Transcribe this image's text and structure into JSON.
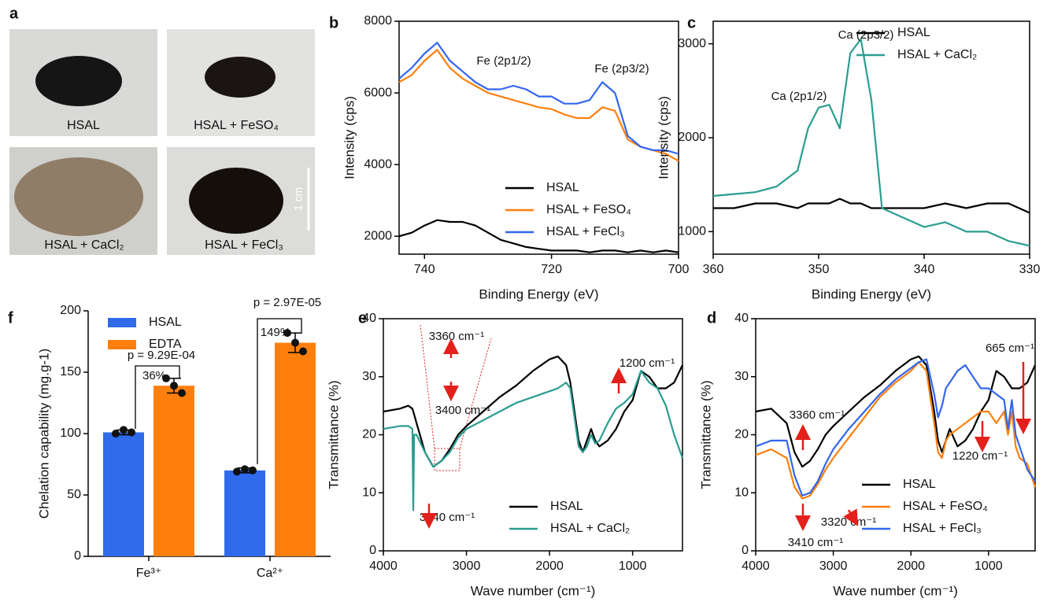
{
  "photos": {
    "panel": "a",
    "labels": [
      "HSAL",
      "HSAL + FeSO₄",
      "HSAL + CaCl₂",
      "HSAL + FeCl₃"
    ],
    "scale_label": "1 cm"
  },
  "chart_data": [
    {
      "type": "line",
      "panel": "b",
      "x_label": "Binding Energy (eV)",
      "y_label": "Intensity (cps)",
      "xlim": [
        744,
        700
      ],
      "ylim": [
        1500,
        8000
      ],
      "xticks": [
        740,
        720,
        700
      ],
      "yticks": [
        2000,
        4000,
        6000,
        8000
      ],
      "legend": "lower right",
      "x": [
        744,
        742,
        740,
        738,
        736,
        734,
        732,
        730,
        728,
        726,
        724,
        722,
        720,
        718,
        716,
        714,
        712,
        710,
        708,
        706,
        704,
        702,
        700
      ],
      "series": [
        {
          "name": "HSAL",
          "color": "#000000",
          "values": [
            2000,
            2100,
            2300,
            2450,
            2400,
            2400,
            2300,
            2100,
            1900,
            1800,
            1700,
            1650,
            1600,
            1600,
            1600,
            1550,
            1600,
            1600,
            1550,
            1600,
            1550,
            1600,
            1550
          ]
        },
        {
          "name": "HSAL + FeSO₄",
          "color": "#ff7f0e",
          "values": [
            6300,
            6500,
            6900,
            7200,
            6700,
            6400,
            6200,
            6000,
            5900,
            5800,
            5700,
            5600,
            5550,
            5400,
            5300,
            5300,
            5600,
            5500,
            4700,
            4500,
            4400,
            4300,
            4100
          ]
        },
        {
          "name": "HSAL + FeCl₃",
          "color": "#3366ee",
          "values": [
            6400,
            6700,
            7100,
            7400,
            6900,
            6600,
            6300,
            6100,
            6100,
            6200,
            6100,
            5900,
            5900,
            5700,
            5700,
            5800,
            6300,
            6000,
            4800,
            4500,
            4400,
            4400,
            4300
          ]
        }
      ],
      "annotations": [
        "Fe (2p1/2)",
        "Fe (2p3/2)"
      ]
    },
    {
      "type": "line",
      "panel": "c",
      "x_label": "Binding Energy (eV)",
      "y_label": "Intensity (cps)",
      "xlim": [
        360,
        330
      ],
      "ylim": [
        760,
        3240
      ],
      "xticks": [
        360,
        350,
        340,
        330
      ],
      "yticks": [
        1000,
        2000,
        3000
      ],
      "legend": "upper right",
      "x": [
        360,
        358,
        356,
        354,
        352,
        351,
        350,
        349,
        348,
        347,
        346,
        345,
        344,
        342,
        340,
        338,
        336,
        334,
        332,
        330
      ],
      "series": [
        {
          "name": "HSAL",
          "color": "#000000",
          "values": [
            1250,
            1250,
            1300,
            1300,
            1250,
            1300,
            1300,
            1300,
            1350,
            1300,
            1300,
            1250,
            1250,
            1250,
            1250,
            1300,
            1250,
            1300,
            1300,
            1200
          ]
        },
        {
          "name": "HSAL + CaCl₂",
          "color": "#2a9d8f",
          "values": [
            1380,
            1400,
            1420,
            1480,
            1650,
            2100,
            2320,
            2350,
            2100,
            2900,
            3050,
            2400,
            1250,
            1150,
            1050,
            1100,
            1000,
            1000,
            900,
            850
          ]
        }
      ],
      "annotations": [
        "Ca (2p3/2)",
        "Ca (2p1/2)"
      ]
    },
    {
      "type": "bar",
      "panel": "f",
      "y_label": "Chelation capability (mg.g-1)",
      "ylim": [
        0,
        200
      ],
      "yticks": [
        0,
        50,
        100,
        150,
        200
      ],
      "legend": "upper left",
      "categories": [
        "Fe³⁺",
        "Ca²⁺"
      ],
      "series": [
        {
          "name": "HSAL",
          "color": "#2f6bea",
          "values": [
            101,
            70
          ],
          "errors": [
            2,
            2
          ],
          "points": [
            [
              100,
              103,
              101
            ],
            [
              69,
              71,
              70
            ]
          ]
        },
        {
          "name": "EDTA",
          "color": "#ff7f0e",
          "values": [
            139,
            174
          ],
          "errors": [
            6,
            8
          ],
          "points": [
            [
              145,
              139,
              133
            ],
            [
              182,
              174,
              167
            ]
          ]
        }
      ],
      "annotations": [
        "p = 9.29E-04",
        "36%",
        "p = 2.97E-05",
        "149%"
      ]
    },
    {
      "type": "line",
      "panel": "e",
      "x_label": "Wave number (cm⁻¹)",
      "y_label": "Transmittance (%)",
      "xlim": [
        4000,
        400
      ],
      "ylim": [
        0,
        40
      ],
      "xticks": [
        4000,
        3000,
        2000,
        1000
      ],
      "yticks": [
        0,
        10,
        20,
        30,
        40
      ],
      "legend": "lower right",
      "x": [
        4000,
        3800,
        3700,
        3650,
        3640,
        3630,
        3600,
        3500,
        3400,
        3300,
        3200,
        3100,
        3000,
        2800,
        2600,
        2400,
        2200,
        2000,
        1900,
        1800,
        1750,
        1700,
        1650,
        1600,
        1550,
        1500,
        1450,
        1400,
        1300,
        1200,
        1100,
        1000,
        900,
        800,
        700,
        600,
        500,
        400
      ],
      "series": [
        {
          "name": "HSAL",
          "color": "#000000",
          "values": [
            24,
            24.5,
            25,
            24.5,
            24,
            23.5,
            22,
            17,
            14.5,
            15.5,
            17.5,
            20,
            21.5,
            24,
            26.5,
            28.5,
            31,
            33,
            33.5,
            32,
            29,
            24,
            19,
            17,
            19,
            21,
            19,
            18,
            19,
            21,
            24,
            26,
            31,
            30,
            28,
            28,
            29,
            32
          ]
        },
        {
          "name": "HSAL + CaCl₂",
          "color": "#2a9d8f",
          "values": [
            21,
            21.5,
            21.5,
            21,
            7,
            20,
            20,
            17,
            14.5,
            15.5,
            17,
            19.5,
            21,
            22.5,
            24,
            25.5,
            26.5,
            27.5,
            28,
            29,
            28,
            23,
            18,
            17,
            18,
            20,
            18.5,
            19,
            22,
            24.5,
            25.5,
            27,
            31,
            29,
            28,
            25,
            20,
            16
          ]
        }
      ],
      "annotations": [
        "3360 cm⁻¹",
        "3400 cm⁻¹",
        "1200 cm⁻¹",
        "3640 cm⁻¹"
      ]
    },
    {
      "type": "line",
      "panel": "d",
      "x_label": "Wave number (cm⁻¹)",
      "y_label": "Transmittance (%)",
      "xlim": [
        4000,
        400
      ],
      "ylim": [
        0,
        40
      ],
      "xticks": [
        4000,
        3000,
        2000,
        1000
      ],
      "yticks": [
        0,
        10,
        20,
        30,
        40
      ],
      "legend": "lower right",
      "x": [
        4000,
        3800,
        3600,
        3500,
        3400,
        3300,
        3200,
        3100,
        3000,
        2800,
        2600,
        2400,
        2200,
        2000,
        1900,
        1800,
        1700,
        1650,
        1600,
        1550,
        1500,
        1400,
        1300,
        1200,
        1100,
        1000,
        900,
        800,
        750,
        700,
        650,
        600,
        500,
        400
      ],
      "series": [
        {
          "name": "HSAL",
          "color": "#000000",
          "values": [
            24,
            24.5,
            22,
            17,
            14.5,
            15.5,
            17.5,
            20,
            21.5,
            24,
            26.5,
            28.5,
            31,
            33,
            33.5,
            32,
            24,
            19,
            17,
            19,
            21,
            18,
            19,
            21,
            24,
            26,
            31,
            30,
            29,
            28,
            28,
            28,
            29,
            32
          ]
        },
        {
          "name": "HSAL + FeSO₄",
          "color": "#ff7f0e",
          "values": [
            16.5,
            17.5,
            16,
            11,
            9,
            9.5,
            11.5,
            14,
            16,
            19.5,
            23,
            26.5,
            29,
            31,
            32.5,
            31,
            22,
            17,
            16,
            19,
            20,
            21,
            22,
            23,
            24,
            24,
            22,
            24,
            20,
            24,
            18,
            16,
            15,
            11
          ]
        },
        {
          "name": "HSAL + FeCl₃",
          "color": "#3366ee",
          "values": [
            18,
            19,
            19,
            13,
            9.5,
            10,
            12,
            15,
            17.5,
            21,
            24,
            27,
            29.5,
            31.5,
            32.5,
            33,
            27,
            23,
            25,
            28,
            29,
            31,
            32,
            30,
            28,
            28,
            27,
            26,
            21,
            26,
            20,
            18,
            14,
            12
          ]
        }
      ],
      "annotations": [
        "665 cm⁻¹",
        "3360 cm⁻¹",
        "1220 cm⁻¹",
        "3320 cm⁻¹",
        "3410 cm⁻¹"
      ]
    }
  ]
}
